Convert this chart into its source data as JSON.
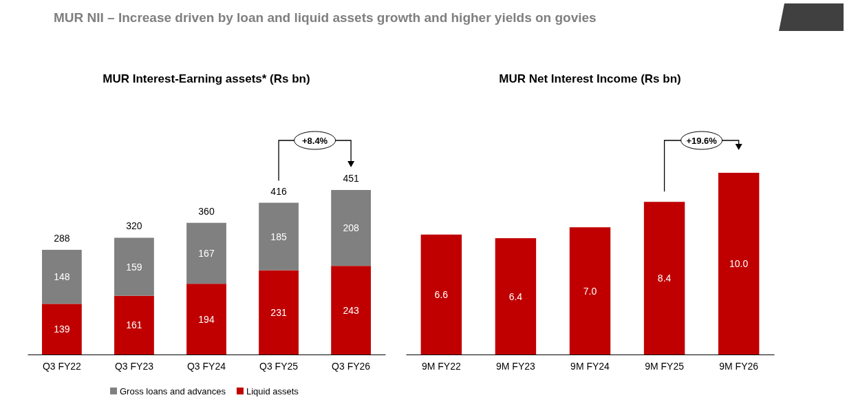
{
  "chart_data": [
    {
      "type": "bar",
      "title": "MUR Interest-Earning assets* (Rs bn)",
      "stacked": true,
      "data_labels": true,
      "legend": "bottom",
      "categories": [
        "Q3 FY22",
        "Q3 FY23",
        "Q3 FY24",
        "Q3 FY25",
        "Q3 FY26"
      ],
      "series": [
        {
          "name": "Liquid assets",
          "color": "#c00000",
          "values": [
            139,
            161,
            194,
            231,
            243
          ]
        },
        {
          "name": "Gross loans and advances",
          "color": "#808080",
          "values": [
            148,
            159,
            167,
            185,
            208
          ]
        }
      ],
      "totals": [
        "288",
        "320",
        "360",
        "416",
        "451"
      ],
      "annotations": [
        "MUR NII – Increase driven by loan and liquid assets growth and higher yields on govies",
        "+8.4%"
      ]
    },
    {
      "type": "bar",
      "title": "MUR Net Interest Income (Rs bn)",
      "categories": [
        "9M FY22",
        "9M FY23",
        "9M FY24",
        "9M FY25",
        "9M FY26"
      ],
      "series": [
        {
          "color": "#c00000",
          "values": [
            6.6,
            6.4,
            7.0,
            8.4,
            10.0
          ],
          "value_labels": [
            "6.6",
            "6.4",
            "7.0",
            "8.4",
            "10.0"
          ]
        }
      ],
      "annotations": [
        "+19.6%"
      ]
    }
  ]
}
